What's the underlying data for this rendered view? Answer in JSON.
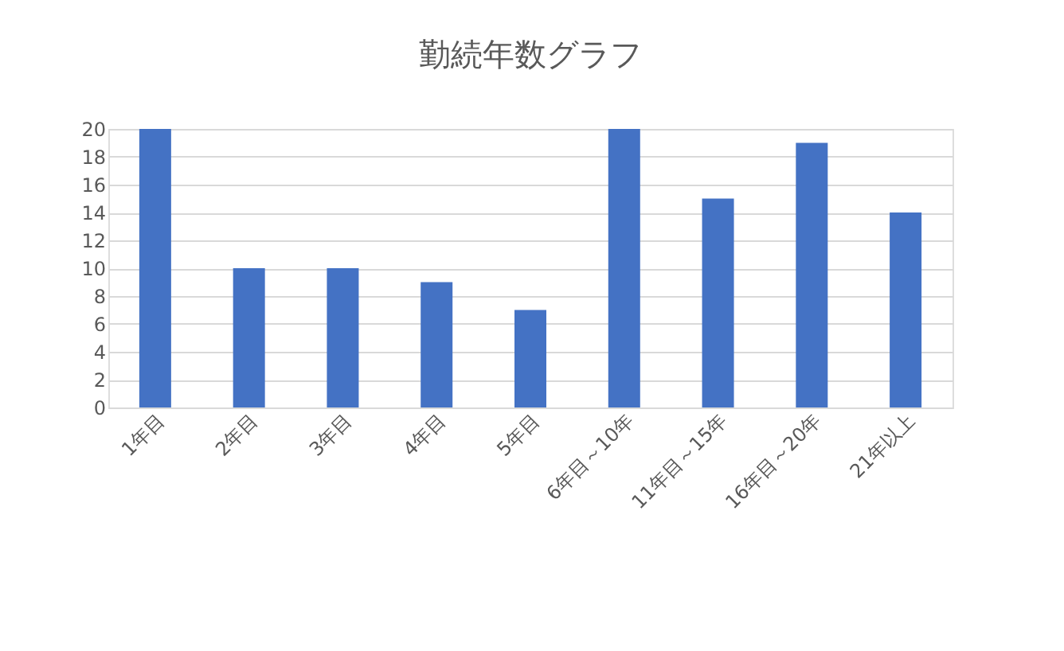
{
  "chart_data": {
    "type": "bar",
    "title": "勤続年数グラフ",
    "categories": [
      "1年目",
      "2年目",
      "3年目",
      "4年目",
      "5年目",
      "6年目～10年",
      "11年目～15年",
      "16年目～20年",
      "21年以上"
    ],
    "values": [
      20,
      10,
      10,
      9,
      7,
      20,
      15,
      19,
      14
    ],
    "color": "#4472c4",
    "ylim": [
      0,
      20
    ],
    "yticks": [
      0,
      2,
      4,
      6,
      8,
      10,
      12,
      14,
      16,
      18,
      20
    ],
    "grid": "y"
  }
}
